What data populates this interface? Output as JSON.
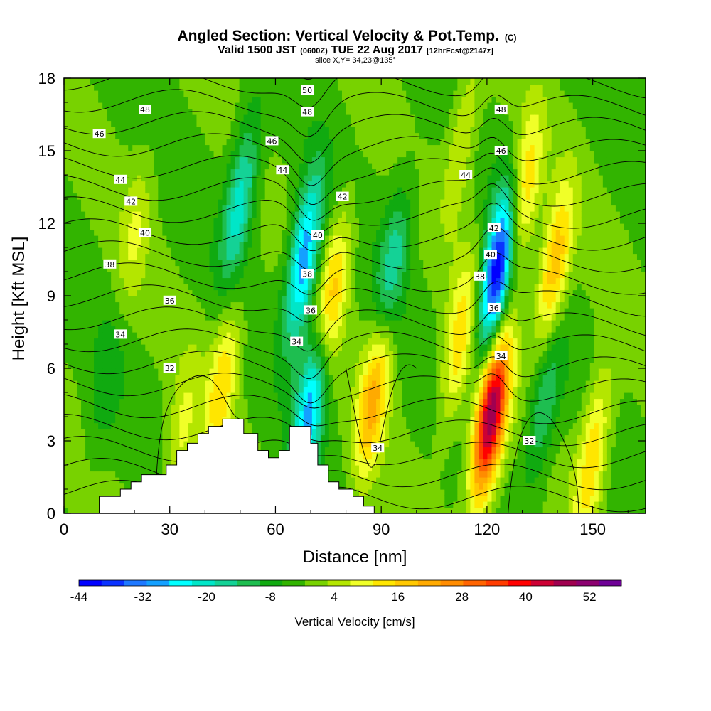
{
  "chart_data": {
    "type": "heatmap",
    "title": "Angled Section: Vertical Velocity & Pot.Temp.",
    "title_suffix": "(C)",
    "subtitle_prefix": "Valid 1500 JST",
    "subtitle_z": "(0600Z)",
    "subtitle_date": "TUE 22 Aug 2017",
    "subtitle_fcst": "[12hrFcst@2147z]",
    "slice": "slice X,Y= 34,23@135°",
    "xlabel": "Distance [nm]",
    "ylabel": "Height [Kft MSL]",
    "xlim": [
      0,
      165
    ],
    "ylim": [
      0,
      18
    ],
    "xticks": [
      "0",
      "30",
      "60",
      "90",
      "120",
      "150"
    ],
    "yticks": [
      "0",
      "3",
      "6",
      "9",
      "12",
      "15",
      "18"
    ],
    "colorbar": {
      "label": "Vertical Velocity [cm/s]",
      "min": -44,
      "max": 58,
      "tick_labels": [
        "-44",
        "-32",
        "-20",
        "-8",
        "4",
        "16",
        "28",
        "40",
        "52"
      ],
      "colors": [
        "#0000ff",
        "#0a32ff",
        "#1e78ff",
        "#14a0ff",
        "#00ffff",
        "#00e6c8",
        "#14d296",
        "#1ebe50",
        "#10aa10",
        "#32b400",
        "#78d200",
        "#b4e600",
        "#f0ff28",
        "#ffe600",
        "#ffc800",
        "#ffaa00",
        "#ff8c00",
        "#ff6400",
        "#ff3c00",
        "#ff0000",
        "#cd0034",
        "#a00050",
        "#8c0070",
        "#6e0096"
      ]
    },
    "wind_sources": [
      {
        "x": 45,
        "z": 5.5,
        "w": 16
      },
      {
        "x": 20,
        "z": 11.5,
        "w": 8
      },
      {
        "x": 33,
        "z": 3.0,
        "w": 10
      },
      {
        "x": 68,
        "z": 10.5,
        "w": -30
      },
      {
        "x": 70,
        "z": 4.5,
        "w": -28
      },
      {
        "x": 50,
        "z": 13.0,
        "w": -20
      },
      {
        "x": 76,
        "z": 9.0,
        "w": 20
      },
      {
        "x": 88,
        "z": 5.0,
        "w": 24
      },
      {
        "x": 93,
        "z": 10.0,
        "w": -16
      },
      {
        "x": 112,
        "z": 7.0,
        "w": 16
      },
      {
        "x": 121,
        "z": 4.0,
        "w": 52
      },
      {
        "x": 123,
        "z": 10.0,
        "w": -44
      },
      {
        "x": 130,
        "z": 13.0,
        "w": 20
      },
      {
        "x": 139,
        "z": 10.0,
        "w": 22
      },
      {
        "x": 136,
        "z": 4.5,
        "w": -14
      },
      {
        "x": 150,
        "z": 2.5,
        "w": 18
      },
      {
        "x": 12,
        "z": 5.5,
        "w": -6
      },
      {
        "x": 113,
        "z": 15.5,
        "w": 10
      }
    ],
    "isotherm_labels": [
      {
        "x": 69,
        "z": 17.5,
        "label": "50"
      },
      {
        "x": 23,
        "z": 16.7,
        "label": "48"
      },
      {
        "x": 69,
        "z": 16.6,
        "label": "48"
      },
      {
        "x": 124,
        "z": 16.7,
        "label": "48"
      },
      {
        "x": 10,
        "z": 15.7,
        "label": "46"
      },
      {
        "x": 59,
        "z": 15.4,
        "label": "46"
      },
      {
        "x": 124,
        "z": 15.0,
        "label": "46"
      },
      {
        "x": 16,
        "z": 13.8,
        "label": "44"
      },
      {
        "x": 62,
        "z": 14.2,
        "label": "44"
      },
      {
        "x": 114,
        "z": 14.0,
        "label": "44"
      },
      {
        "x": 19,
        "z": 12.9,
        "label": "42"
      },
      {
        "x": 79,
        "z": 13.1,
        "label": "42"
      },
      {
        "x": 122,
        "z": 11.8,
        "label": "42"
      },
      {
        "x": 23,
        "z": 11.6,
        "label": "40"
      },
      {
        "x": 72,
        "z": 11.5,
        "label": "40"
      },
      {
        "x": 121,
        "z": 10.7,
        "label": "40"
      },
      {
        "x": 13,
        "z": 10.3,
        "label": "38"
      },
      {
        "x": 69,
        "z": 9.9,
        "label": "38"
      },
      {
        "x": 118,
        "z": 9.8,
        "label": "38"
      },
      {
        "x": 30,
        "z": 8.8,
        "label": "36"
      },
      {
        "x": 70,
        "z": 8.4,
        "label": "36"
      },
      {
        "x": 122,
        "z": 8.5,
        "label": "36"
      },
      {
        "x": 16,
        "z": 7.4,
        "label": "34"
      },
      {
        "x": 66,
        "z": 7.1,
        "label": "34"
      },
      {
        "x": 124,
        "z": 6.5,
        "label": "34"
      },
      {
        "x": 89,
        "z": 2.7,
        "label": "34"
      },
      {
        "x": 30,
        "z": 6.0,
        "label": "32"
      },
      {
        "x": 132,
        "z": 3.0,
        "label": "32"
      }
    ],
    "terrain": [
      [
        0,
        0
      ],
      [
        10,
        0
      ],
      [
        10,
        0.7
      ],
      [
        16,
        0.7
      ],
      [
        16,
        1.0
      ],
      [
        19,
        1.0
      ],
      [
        19,
        1.3
      ],
      [
        22,
        1.3
      ],
      [
        22,
        1.6
      ],
      [
        29,
        1.6
      ],
      [
        29,
        2.0
      ],
      [
        32,
        2.0
      ],
      [
        32,
        2.6
      ],
      [
        35,
        2.6
      ],
      [
        35,
        2.9
      ],
      [
        38,
        2.9
      ],
      [
        38,
        3.3
      ],
      [
        41,
        3.3
      ],
      [
        41,
        3.6
      ],
      [
        45,
        3.6
      ],
      [
        45,
        3.9
      ],
      [
        51,
        3.9
      ],
      [
        51,
        3.3
      ],
      [
        55,
        3.3
      ],
      [
        55,
        2.6
      ],
      [
        58,
        2.6
      ],
      [
        58,
        2.3
      ],
      [
        61,
        2.3
      ],
      [
        61,
        2.6
      ],
      [
        64,
        2.6
      ],
      [
        64,
        3.6
      ],
      [
        70,
        3.6
      ],
      [
        70,
        2.9
      ],
      [
        72,
        2.9
      ],
      [
        72,
        2.0
      ],
      [
        75,
        2.0
      ],
      [
        75,
        1.3
      ],
      [
        78,
        1.3
      ],
      [
        78,
        1.0
      ],
      [
        82,
        1.0
      ],
      [
        82,
        0.7
      ],
      [
        85,
        0.7
      ],
      [
        85,
        0.3
      ],
      [
        88,
        0.3
      ],
      [
        88,
        0
      ],
      [
        165,
        0
      ]
    ]
  }
}
